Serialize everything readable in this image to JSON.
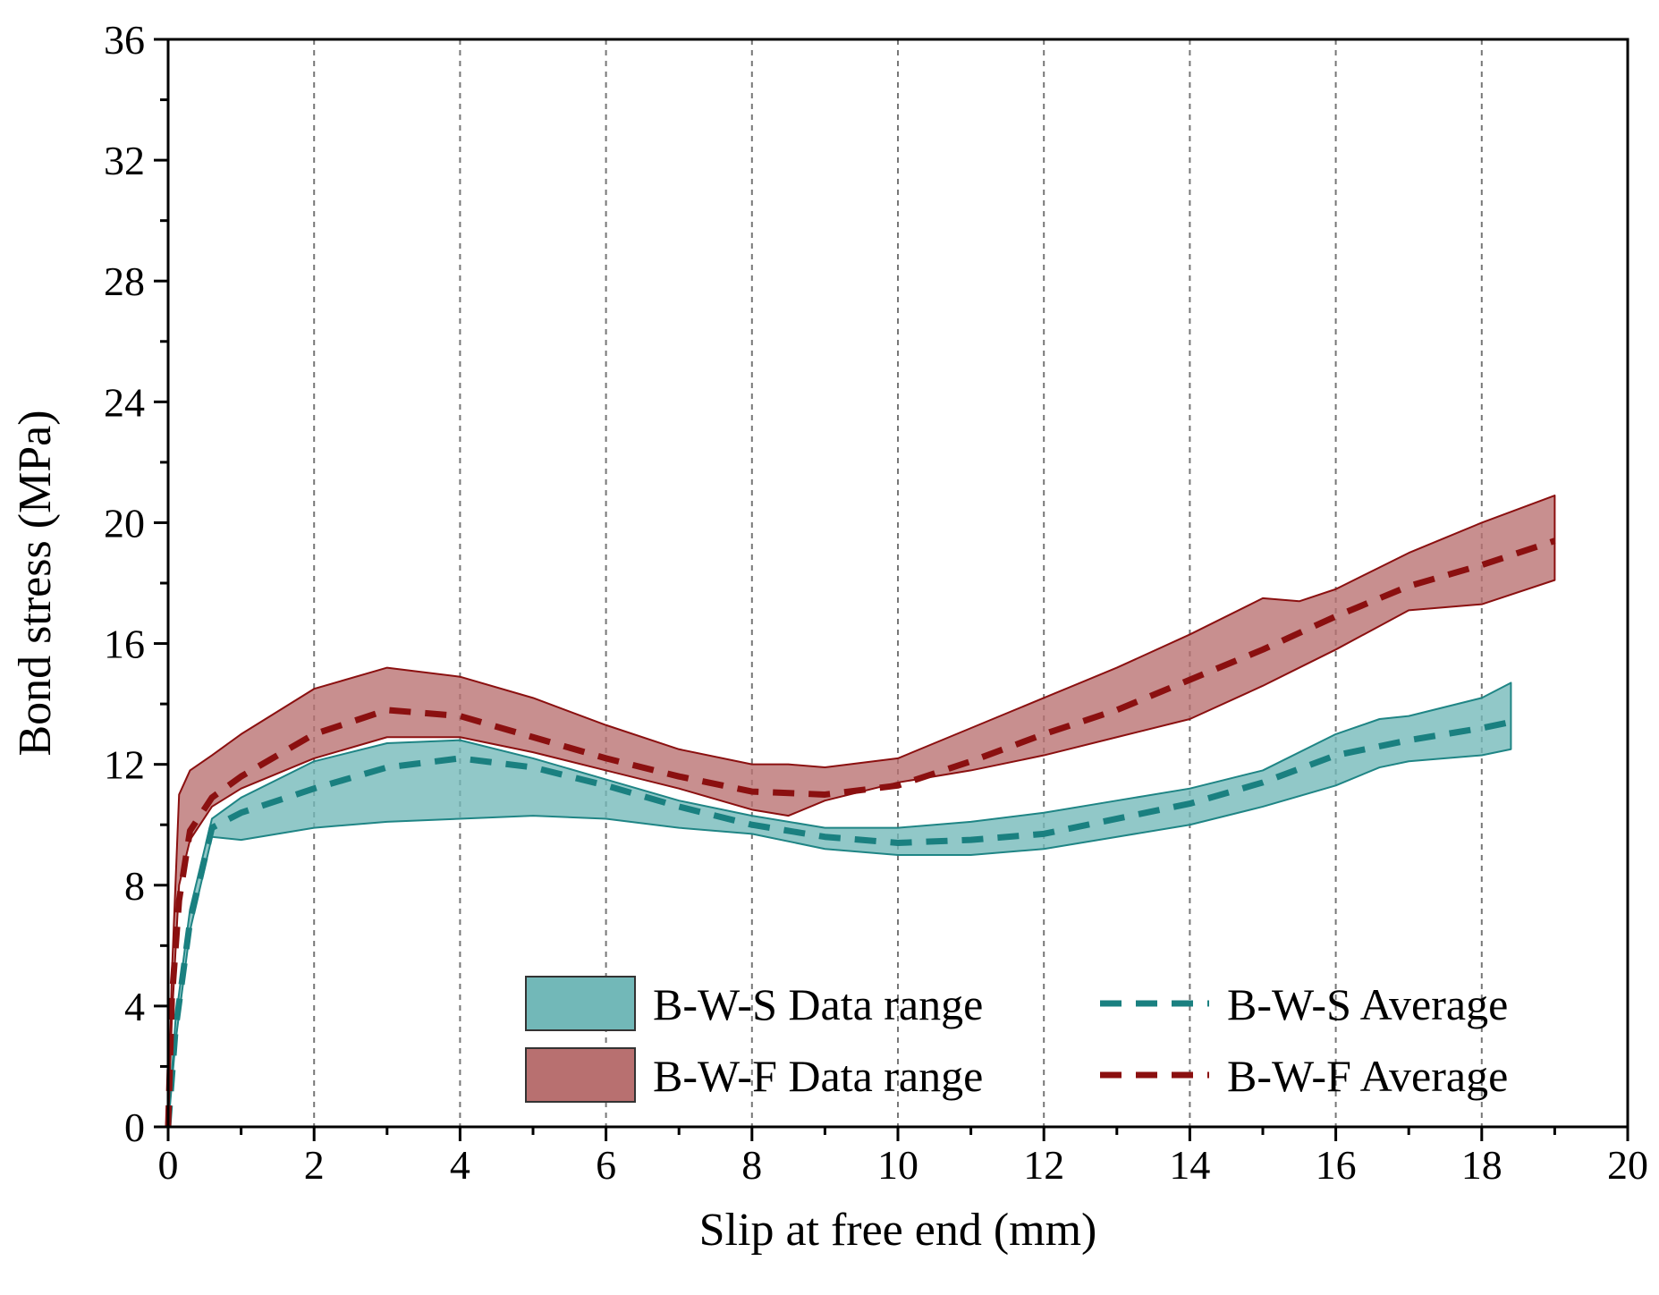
{
  "chart_data": {
    "type": "area",
    "xlabel": "Slip at free end (mm)",
    "ylabel": "Bond stress (MPa)",
    "xlim": [
      0,
      20
    ],
    "ylim": [
      0,
      36
    ],
    "x_ticks": [
      "0",
      "2",
      "4",
      "6",
      "8",
      "10",
      "12",
      "14",
      "16",
      "18",
      "20"
    ],
    "y_ticks": [
      "0",
      "4",
      "8",
      "12",
      "16",
      "20",
      "24",
      "28",
      "32",
      "36"
    ],
    "grid": "vertical dashed at x = 2, 4, 6, ..., 18",
    "legend_position": "bottom-right",
    "series": [
      {
        "name": "B-W-S Data range",
        "kind": "band",
        "color": "#72b8b8",
        "edge_color": "#1f8585",
        "x": [
          0,
          0.1,
          0.3,
          0.6,
          1,
          2,
          3,
          4,
          5,
          6,
          7,
          8,
          9,
          10,
          11,
          12,
          13,
          14,
          15,
          16,
          16.6,
          17,
          18,
          18.4
        ],
        "lower": [
          0,
          2.8,
          6.5,
          9.6,
          9.5,
          9.9,
          10.1,
          10.2,
          10.3,
          10.2,
          9.9,
          9.7,
          9.2,
          9.0,
          9.0,
          9.2,
          9.6,
          10.0,
          10.6,
          11.3,
          11.9,
          12.1,
          12.3,
          12.5
        ],
        "upper": [
          0,
          3.5,
          7.2,
          10.2,
          10.9,
          12.1,
          12.7,
          12.8,
          12.2,
          11.5,
          10.8,
          10.3,
          9.9,
          9.9,
          10.1,
          10.4,
          10.8,
          11.2,
          11.8,
          13.0,
          13.5,
          13.6,
          14.2,
          14.7
        ]
      },
      {
        "name": "B-W-F Data range",
        "kind": "band",
        "color": "#b87070",
        "edge_color": "#8b1010",
        "x": [
          0,
          0.05,
          0.15,
          0.3,
          0.6,
          1,
          2,
          3,
          4,
          5,
          6,
          7,
          8,
          8.5,
          9,
          10,
          11,
          12,
          13,
          14,
          15,
          15.5,
          16,
          17,
          17.5,
          18,
          19
        ],
        "lower": [
          0,
          3.5,
          8.0,
          9.5,
          10.6,
          11.2,
          12.2,
          12.9,
          12.9,
          12.4,
          11.8,
          11.2,
          10.5,
          10.3,
          10.8,
          11.4,
          11.8,
          12.3,
          12.9,
          13.5,
          14.6,
          15.2,
          15.8,
          17.1,
          17.2,
          17.3,
          18.1
        ],
        "upper": [
          0,
          5.0,
          11.0,
          11.8,
          12.3,
          13.0,
          14.5,
          15.2,
          14.9,
          14.2,
          13.3,
          12.5,
          12.0,
          12.0,
          11.9,
          12.2,
          13.2,
          14.2,
          15.2,
          16.3,
          17.5,
          17.4,
          17.8,
          19.0,
          19.5,
          20.0,
          20.9
        ]
      },
      {
        "name": "B-W-S Average",
        "kind": "dashed-line",
        "color": "#1a8080",
        "x": [
          0,
          0.1,
          0.3,
          0.6,
          1,
          2,
          3,
          4,
          5,
          6,
          7,
          8,
          9,
          10,
          11,
          12,
          13,
          14,
          15,
          16,
          17,
          18,
          18.4
        ],
        "y": [
          0,
          3.2,
          6.8,
          9.9,
          10.4,
          11.2,
          11.9,
          12.2,
          11.9,
          11.3,
          10.6,
          10.0,
          9.6,
          9.4,
          9.5,
          9.7,
          10.2,
          10.7,
          11.4,
          12.3,
          12.8,
          13.2,
          13.4
        ]
      },
      {
        "name": "B-W-F Average",
        "kind": "dashed-line",
        "color": "#8b1010",
        "x": [
          0,
          0.05,
          0.15,
          0.3,
          0.6,
          1,
          2,
          3,
          4,
          5,
          6,
          7,
          8,
          9,
          10,
          11,
          12,
          13,
          14,
          15,
          16,
          17,
          18,
          19
        ],
        "y": [
          0,
          4.2,
          7.5,
          9.8,
          10.9,
          11.6,
          13.0,
          13.8,
          13.6,
          12.9,
          12.2,
          11.6,
          11.1,
          11.0,
          11.3,
          12.1,
          13.0,
          13.8,
          14.8,
          15.8,
          16.9,
          17.9,
          18.6,
          19.4
        ]
      }
    ]
  }
}
